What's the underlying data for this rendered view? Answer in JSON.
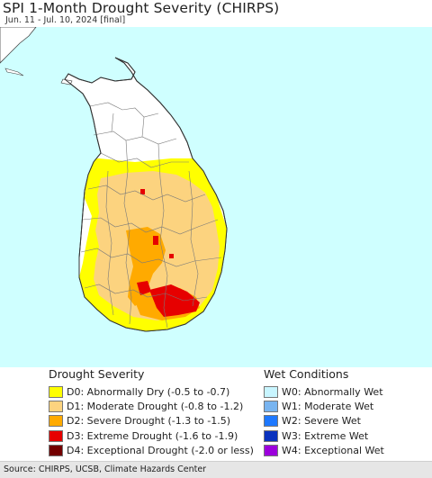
{
  "title": "SPI 1-Month Drought Severity (CHIRPS)",
  "subtitle": "Jun. 11 - Jul. 10, 2024 [final]",
  "colors": {
    "ocean": "#cfffff",
    "land_normal": "#ffffff",
    "D0": "#ffff00",
    "D1": "#fcd37f",
    "D2": "#ffaa00",
    "D3": "#e60000",
    "D4": "#730000",
    "W0": "#c8f5ff",
    "W1": "#78b4f0",
    "W2": "#1e78ff",
    "W3": "#0a32be",
    "W4": "#9c00dc",
    "boundary": "#777777"
  },
  "legend": {
    "drought": {
      "heading": "Drought Severity",
      "items": [
        {
          "code": "D0",
          "label": "D0: Abnormally Dry (-0.5 to -0.7)",
          "color": "#ffff00"
        },
        {
          "code": "D1",
          "label": "D1: Moderate Drought (-0.8 to -1.2)",
          "color": "#fcd37f"
        },
        {
          "code": "D2",
          "label": "D2: Severe Drought (-1.3 to -1.5)",
          "color": "#ffaa00"
        },
        {
          "code": "D3",
          "label": "D3: Extreme Drought (-1.6 to -1.9)",
          "color": "#e60000"
        },
        {
          "code": "D4",
          "label": "D4: Exceptional Drought (-2.0 or less)",
          "color": "#730000"
        }
      ]
    },
    "wet": {
      "heading": "Wet Conditions",
      "items": [
        {
          "code": "W0",
          "label": "W0: Abnormally Wet",
          "color": "#c8f5ff"
        },
        {
          "code": "W1",
          "label": "W1: Moderate Wet",
          "color": "#78b4f0"
        },
        {
          "code": "W2",
          "label": "W2: Severe Wet",
          "color": "#1e78ff"
        },
        {
          "code": "W3",
          "label": "W3: Extreme Wet",
          "color": "#0a32be"
        },
        {
          "code": "W4",
          "label": "W4: Exceptional Wet",
          "color": "#9c00dc"
        }
      ]
    }
  },
  "footer": {
    "source": "Source: CHIRPS, UCSB, Climate Hazards Center"
  }
}
